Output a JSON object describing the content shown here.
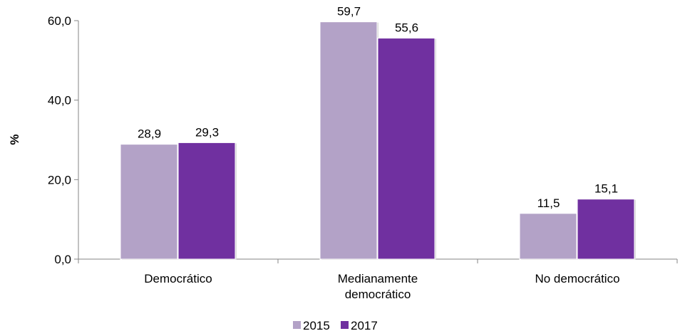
{
  "chart_data": {
    "type": "bar",
    "title": "",
    "xlabel": "",
    "ylabel": "%",
    "ylim": [
      0,
      60
    ],
    "y_ticks": [
      "0,0",
      "20,0",
      "40,0",
      "60,0"
    ],
    "y_tick_values": [
      0,
      20,
      40,
      60
    ],
    "grid": false,
    "legend_position": "bottom",
    "categories": [
      [
        "Democrático"
      ],
      [
        "Medianamente",
        "democrático"
      ],
      [
        "No democrático"
      ]
    ],
    "series": [
      {
        "name": "2015",
        "color": "#b3a2c7",
        "values": [
          28.9,
          59.7,
          11.5
        ],
        "labels": [
          "28,9",
          "59,7",
          "11,5"
        ]
      },
      {
        "name": "2017",
        "color": "#7030a0",
        "values": [
          29.3,
          55.6,
          15.1
        ],
        "labels": [
          "29,3",
          "55,6",
          "15,1"
        ]
      }
    ]
  }
}
